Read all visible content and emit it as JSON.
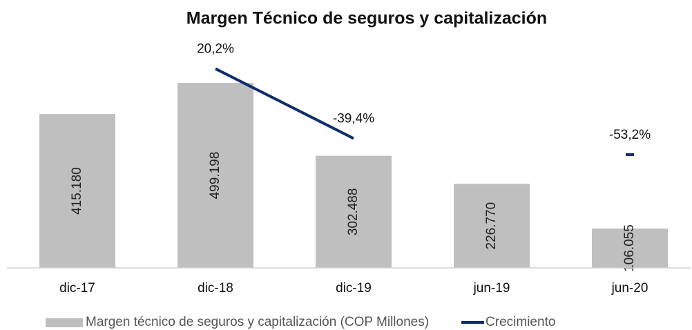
{
  "chart_data": {
    "type": "bar",
    "title": "Margen Técnico de seguros y capitalización",
    "categories": [
      "dic-17",
      "dic-18",
      "dic-19",
      "jun-19",
      "jun-20"
    ],
    "series": [
      {
        "name": "Margen técnico de seguros y capitalización (COP Millones)",
        "type": "bar",
        "color": "#bfbfbf",
        "values": [
          415180,
          499198,
          302488,
          226770,
          106055
        ],
        "value_labels": [
          "415.180",
          "499.198",
          "302.488",
          "226.770",
          "106.055"
        ]
      },
      {
        "name": "Crecimiento",
        "type": "line",
        "axis": "y2",
        "color": "#0e2d6b",
        "values": [
          null,
          20.2,
          -39.4,
          null,
          -53.2
        ],
        "value_labels": [
          null,
          "20,2%",
          "-39,4%",
          null,
          "-53,2%"
        ]
      }
    ],
    "ylim": [
      0,
      600000
    ],
    "y2lim": [
      -150,
      40
    ],
    "legend": "bottom"
  }
}
